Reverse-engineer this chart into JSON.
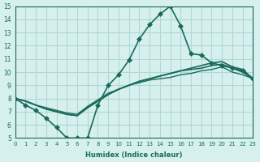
{
  "xlabel": "Humidex (Indice chaleur)",
  "xlim": [
    0,
    23
  ],
  "ylim": [
    5,
    15
  ],
  "xticks": [
    0,
    1,
    2,
    3,
    4,
    5,
    6,
    7,
    8,
    9,
    10,
    11,
    12,
    13,
    14,
    15,
    16,
    17,
    18,
    19,
    20,
    21,
    22,
    23
  ],
  "yticks": [
    5,
    6,
    7,
    8,
    9,
    10,
    11,
    12,
    13,
    14,
    15
  ],
  "background_color": "#d6f0ee",
  "grid_color": "#b0d8d4",
  "line_color": "#1a6b5a",
  "lines": [
    {
      "x": [
        0,
        1,
        2,
        3,
        4,
        5,
        6,
        7,
        8,
        9,
        10,
        11,
        12,
        13,
        14,
        15,
        16,
        17,
        18,
        19,
        20,
        21,
        22,
        23
      ],
      "y": [
        8.0,
        7.5,
        7.1,
        6.5,
        5.8,
        5.0,
        5.0,
        5.0,
        7.5,
        9.0,
        9.8,
        10.9,
        12.5,
        13.6,
        14.4,
        15.0,
        13.5,
        11.4,
        11.3,
        10.7,
        10.5,
        10.3,
        10.1,
        9.5
      ],
      "marker": "D",
      "markersize": 3,
      "linewidth": 1.2
    },
    {
      "x": [
        0,
        1,
        2,
        3,
        4,
        5,
        6,
        7,
        8,
        9,
        10,
        11,
        12,
        13,
        14,
        15,
        16,
        17,
        18,
        19,
        20,
        21,
        22,
        23
      ],
      "y": [
        8.0,
        7.8,
        7.5,
        7.2,
        7.0,
        6.8,
        6.7,
        7.3,
        7.8,
        8.3,
        8.7,
        9.0,
        9.3,
        9.5,
        9.7,
        9.9,
        10.1,
        10.3,
        10.5,
        10.7,
        10.8,
        10.4,
        10.2,
        9.5
      ],
      "marker": null,
      "markersize": 0,
      "linewidth": 1.2
    },
    {
      "x": [
        0,
        1,
        2,
        3,
        4,
        5,
        6,
        7,
        8,
        9,
        10,
        11,
        12,
        13,
        14,
        15,
        16,
        17,
        18,
        19,
        20,
        21,
        22,
        23
      ],
      "y": [
        8.0,
        7.8,
        7.5,
        7.2,
        7.0,
        6.8,
        6.7,
        7.3,
        7.8,
        8.3,
        8.7,
        9.0,
        9.3,
        9.5,
        9.7,
        9.9,
        10.1,
        10.2,
        10.3,
        10.5,
        10.6,
        10.3,
        10.0,
        9.5
      ],
      "marker": null,
      "markersize": 0,
      "linewidth": 1.2
    },
    {
      "x": [
        0,
        1,
        2,
        3,
        4,
        5,
        6,
        7,
        8,
        9,
        10,
        11,
        12,
        13,
        14,
        15,
        16,
        17,
        18,
        19,
        20,
        21,
        22,
        23
      ],
      "y": [
        8.0,
        7.8,
        7.5,
        7.3,
        7.1,
        6.9,
        6.8,
        7.4,
        7.9,
        8.4,
        8.7,
        9.0,
        9.2,
        9.4,
        9.5,
        9.6,
        9.8,
        9.9,
        10.1,
        10.2,
        10.4,
        10.0,
        9.8,
        9.5
      ],
      "marker": null,
      "markersize": 0,
      "linewidth": 1.0
    }
  ]
}
